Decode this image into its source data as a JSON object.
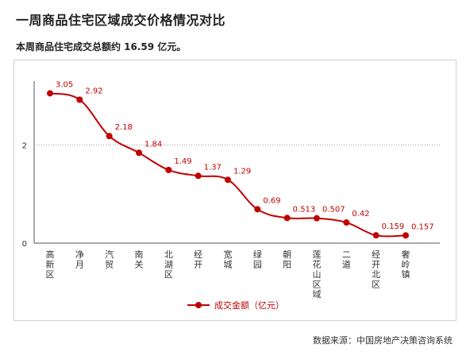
{
  "title": "一周商品住宅区域成交价格情况对比",
  "subtitle": "本周商品住宅成交总额约 16.59 亿元。",
  "source": "数据来源：中国房地产决策咨询系统",
  "colors": {
    "series": "#c00000",
    "grid": "#999999",
    "axis": "#555555"
  },
  "chart_data": {
    "type": "line",
    "title": "",
    "xlabel": "",
    "ylabel": "",
    "ylim": [
      0,
      3.3
    ],
    "yticks": [
      0,
      2
    ],
    "grid": "dotted line at y=2",
    "legend": "bottom-center",
    "categories": [
      "高新区",
      "净月",
      "汽贸",
      "南关",
      "北湖区",
      "经开",
      "宽城",
      "绿园",
      "朝阳",
      "莲花山区域",
      "二道",
      "经开北区",
      "奢岭镇"
    ],
    "series": [
      {
        "name": "成交金额（亿元）",
        "values": [
          3.05,
          2.92,
          2.18,
          1.84,
          1.49,
          1.37,
          1.29,
          0.69,
          0.513,
          0.507,
          0.42,
          0.159,
          0.157
        ],
        "labels": [
          "3.05",
          "2.92",
          "2.18",
          "1.84",
          "1.49",
          "1.37",
          "1.29",
          "0.69",
          "0.513",
          "0.507",
          "0.42",
          "0.159",
          "0.157"
        ]
      }
    ]
  }
}
